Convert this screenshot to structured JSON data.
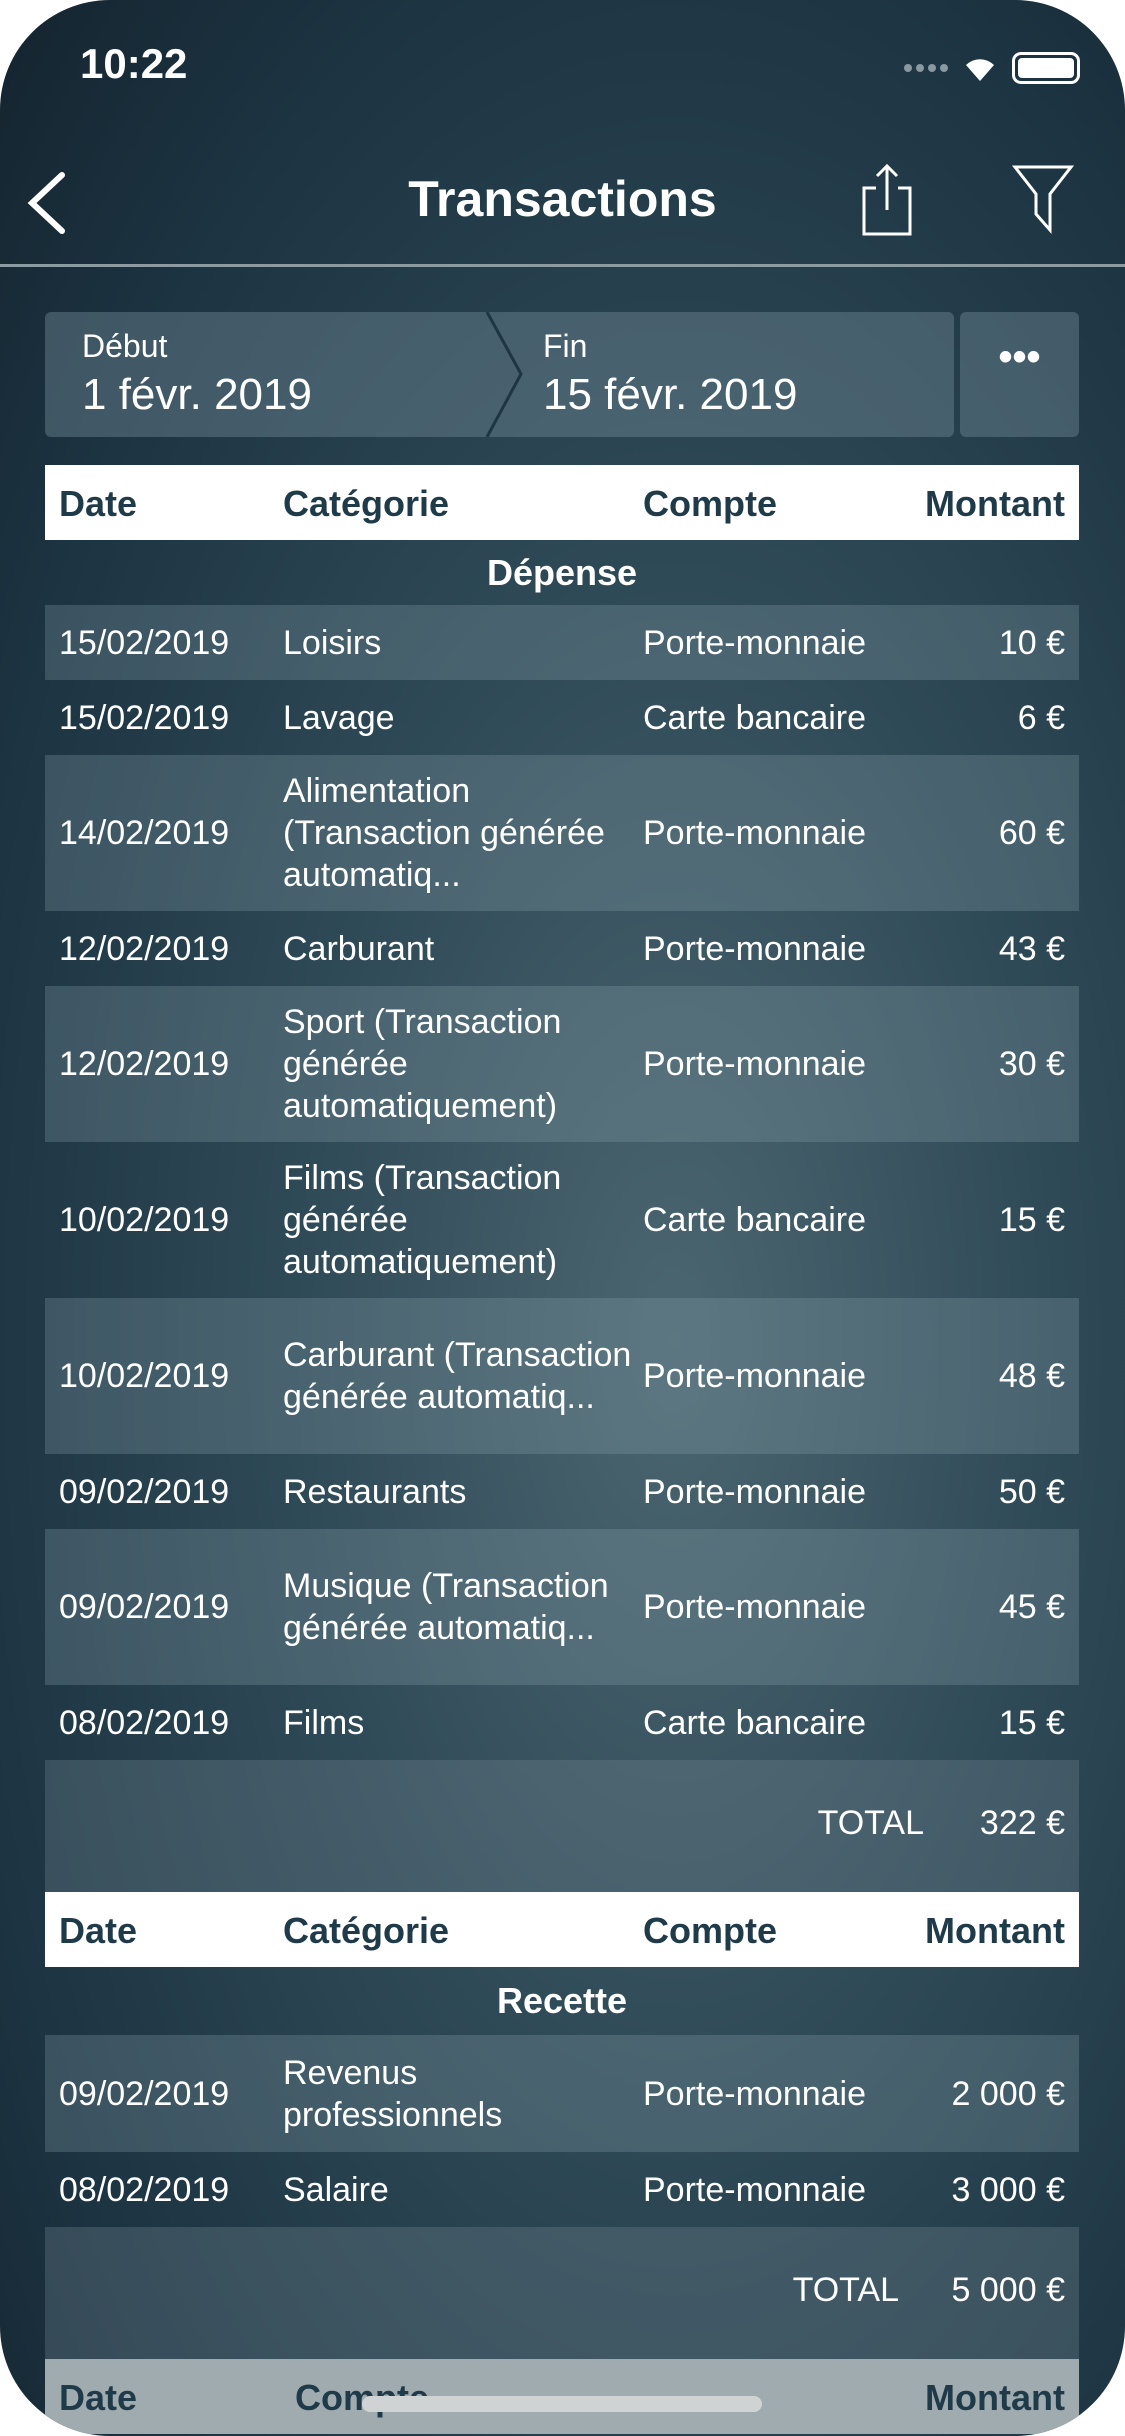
{
  "status": {
    "time": "10:22"
  },
  "nav": {
    "title": "Transactions"
  },
  "range": {
    "start_label": "Début",
    "start_value": "1 févr. 2019",
    "end_label": "Fin",
    "end_value": "15 févr. 2019",
    "more": "•••"
  },
  "columns": {
    "date": "Date",
    "category": "Catégorie",
    "account": "Compte",
    "amount": "Montant"
  },
  "expenses": {
    "title": "Dépense",
    "rows": [
      {
        "date": "15/02/2019",
        "category": "Loisirs",
        "account": "Porte-monnaie",
        "amount": "10 €"
      },
      {
        "date": "15/02/2019",
        "category": "Lavage",
        "account": "Carte bancaire",
        "amount": "6 €"
      },
      {
        "date": "14/02/2019",
        "category": "Alimentation (Transaction générée automatiq...",
        "account": "Porte-monnaie",
        "amount": "60 €"
      },
      {
        "date": "12/02/2019",
        "category": "Carburant",
        "account": "Porte-monnaie",
        "amount": "43 €"
      },
      {
        "date": "12/02/2019",
        "category": "Sport (Transaction générée automatiquement)",
        "account": "Porte-monnaie",
        "amount": "30 €"
      },
      {
        "date": "10/02/2019",
        "category": "Films (Transaction générée automatiquement)",
        "account": "Carte bancaire",
        "amount": "15 €"
      },
      {
        "date": "10/02/2019",
        "category": "Carburant (Transaction générée automatiq...",
        "account": "Porte-monnaie",
        "amount": "48 €"
      },
      {
        "date": "09/02/2019",
        "category": "Restaurants",
        "account": "Porte-monnaie",
        "amount": "50 €"
      },
      {
        "date": "09/02/2019",
        "category": "Musique (Transaction générée automatiq...",
        "account": "Porte-monnaie",
        "amount": "45 €"
      },
      {
        "date": "08/02/2019",
        "category": "Films",
        "account": "Carte bancaire",
        "amount": "15 €"
      }
    ],
    "total_label": "TOTAL",
    "total": "322 €"
  },
  "income": {
    "title": "Recette",
    "rows": [
      {
        "date": "09/02/2019",
        "category": "Revenus professionnels",
        "account": "Porte-monnaie",
        "amount": "2 000 €"
      },
      {
        "date": "08/02/2019",
        "category": "Salaire",
        "account": "Porte-monnaie",
        "amount": "3 000 €"
      }
    ],
    "total_label": "TOTAL",
    "total": "5 000 €"
  },
  "next_columns": {
    "date": "Date",
    "account": "Compte",
    "amount": "Montant"
  }
}
